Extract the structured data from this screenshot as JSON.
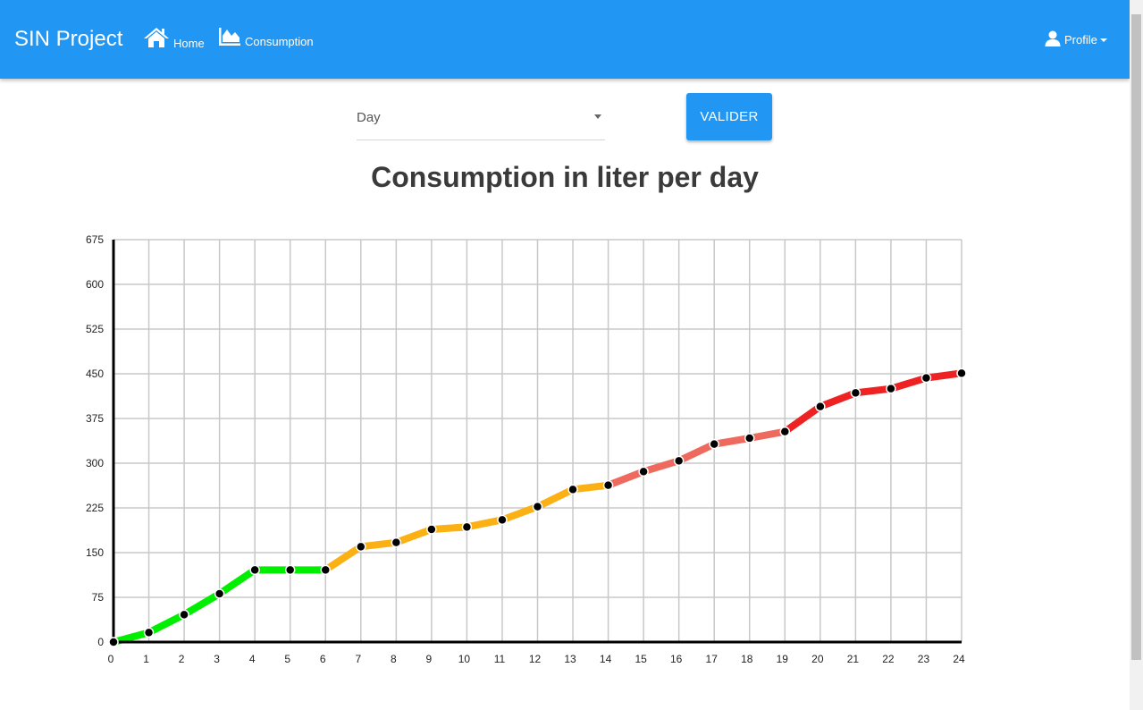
{
  "nav": {
    "brand": "SIN Project",
    "home_label": "Home",
    "consumption_label": "Consumption",
    "profile_label": "Profile"
  },
  "form": {
    "period_value": "Day",
    "submit_label": "VALIDER"
  },
  "colors": {
    "navbar": "#2196f3",
    "low": "#00ee00",
    "medium": "#fbb014",
    "high": "#ee6a5f",
    "very_high": "#ee2222"
  },
  "chart_data": {
    "type": "line",
    "title": "Consumption in liter per day",
    "x": [
      0,
      1,
      2,
      3,
      4,
      5,
      6,
      7,
      8,
      9,
      10,
      11,
      12,
      13,
      14,
      15,
      16,
      17,
      18,
      19,
      20,
      21,
      22,
      23,
      24
    ],
    "values": [
      0,
      16,
      46,
      81,
      121,
      121,
      121,
      160,
      167,
      189,
      193,
      205,
      227,
      256,
      263,
      286,
      304,
      332,
      342,
      353,
      395,
      418,
      425,
      443,
      451
    ],
    "segment_levels": [
      "low",
      "low",
      "low",
      "low",
      "low",
      "low",
      "medium",
      "medium",
      "medium",
      "medium",
      "medium",
      "medium",
      "medium",
      "medium",
      "high",
      "high",
      "high",
      "high",
      "high",
      "very_high",
      "very_high",
      "very_high",
      "very_high",
      "very_high"
    ],
    "xlim": [
      0,
      24
    ],
    "ylim": [
      0,
      675
    ],
    "yticks": [
      0,
      75,
      150,
      225,
      300,
      375,
      450,
      525,
      600,
      675
    ],
    "grid": true,
    "legend": "none"
  }
}
